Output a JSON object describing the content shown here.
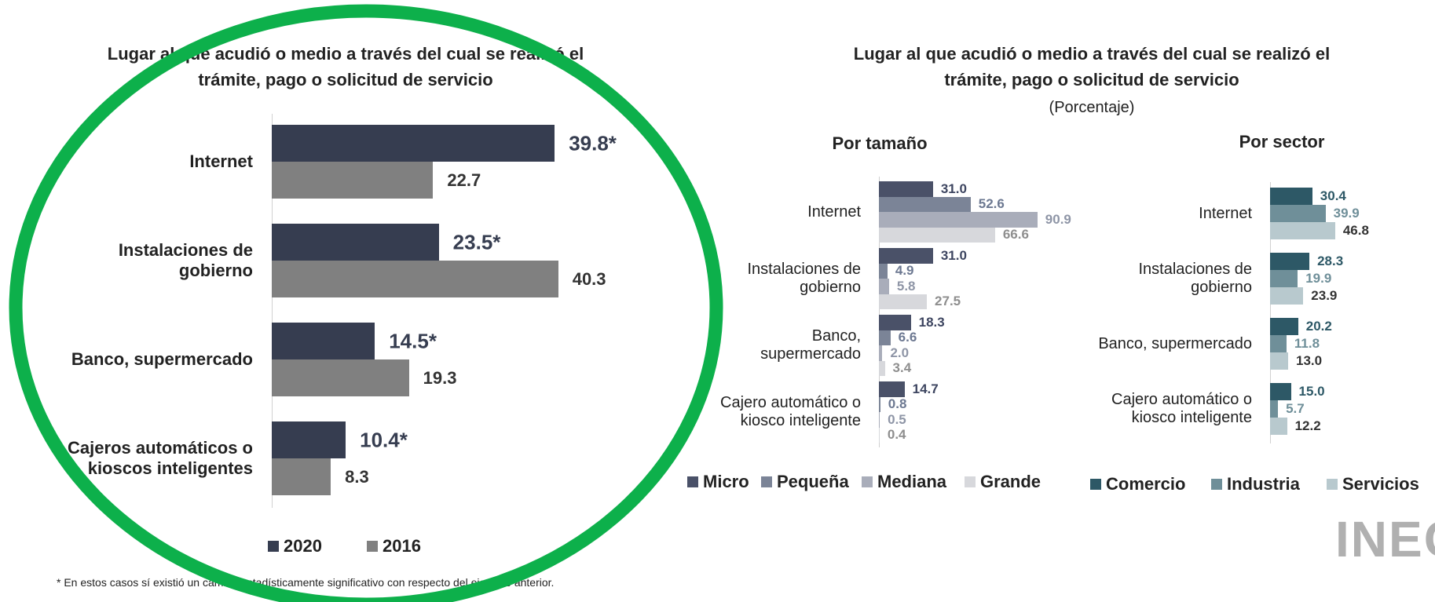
{
  "chart_data": [
    {
      "type": "hbar",
      "title": "Lugar al que acudió o medio a través del cual se realizó el trámite, pago o solicitud de servicio",
      "categories": [
        "Internet",
        "Instalaciones de gobierno",
        "Banco, supermercado",
        "Cajeros automáticos o kioscos inteligentes"
      ],
      "series": [
        {
          "name": "2020",
          "color": "#363d50",
          "label_color": "#363d50",
          "values": [
            39.8,
            23.5,
            14.5,
            10.4
          ],
          "value_labels": [
            "39.8*",
            "23.5*",
            "14.5*",
            "10.4*"
          ]
        },
        {
          "name": "2016",
          "color": "#808080",
          "label_color": "#333333",
          "values": [
            22.7,
            40.3,
            19.3,
            8.3
          ],
          "value_labels": [
            "22.7",
            "40.3",
            "19.3",
            "8.3"
          ]
        }
      ],
      "footnote": "* En estos casos sí existió un cambio estadísticamente significativo con respecto del ejercicio anterior."
    },
    {
      "type": "hbar",
      "title": "Lugar al que acudió o medio a través del cual se realizó el trámite, pago o solicitud de servicio",
      "subtitle": "(Porcentaje)",
      "panel_title": "Por tamaño",
      "categories": [
        "Internet",
        "Instalaciones de gobierno",
        "Banco, supermercado",
        "Cajero automático o kiosco inteligente"
      ],
      "series": [
        {
          "name": "Micro",
          "color": "#4a5168",
          "label_color": "#3d4560",
          "values": [
            31.0,
            31.0,
            18.3,
            14.7
          ],
          "value_labels": [
            "31.0",
            "31.0",
            "18.3",
            "14.7"
          ]
        },
        {
          "name": "Pequeña",
          "color": "#7b8497",
          "label_color": "#6c7891",
          "values": [
            52.6,
            4.9,
            6.6,
            0.8
          ],
          "value_labels": [
            "52.6",
            "4.9",
            "6.6",
            "0.8"
          ]
        },
        {
          "name": "Mediana",
          "color": "#a9adba",
          "label_color": "#8e95a6",
          "values": [
            90.9,
            5.8,
            2.0,
            0.5
          ],
          "value_labels": [
            "90.9",
            "5.8",
            "2.0",
            "0.5"
          ]
        },
        {
          "name": "Grande",
          "color": "#d7d8dc",
          "label_color": "#8e8e8e",
          "values": [
            66.6,
            27.5,
            3.4,
            0.4
          ],
          "value_labels": [
            "66.6",
            "27.5",
            "3.4",
            "0.4"
          ]
        }
      ]
    },
    {
      "type": "hbar",
      "panel_title": "Por sector",
      "categories": [
        "Internet",
        "Instalaciones de gobierno",
        "Banco, supermercado",
        "Cajero automático o kiosco inteligente"
      ],
      "series": [
        {
          "name": "Comercio",
          "color": "#2d5866",
          "label_color": "#2d5866",
          "values": [
            30.4,
            28.3,
            20.2,
            15.0
          ],
          "value_labels": [
            "30.4",
            "28.3",
            "20.2",
            "15.0"
          ]
        },
        {
          "name": "Industria",
          "color": "#6f8f99",
          "label_color": "#6f8f99",
          "values": [
            39.9,
            19.9,
            11.8,
            5.7
          ],
          "value_labels": [
            "39.9",
            "19.9",
            "11.8",
            "5.7"
          ]
        },
        {
          "name": "Servicios",
          "color": "#b8c9ce",
          "label_color": "#333333",
          "values": [
            46.8,
            23.9,
            13.0,
            12.2
          ],
          "value_labels": [
            "46.8",
            "23.9",
            "13.0",
            "12.2"
          ]
        }
      ],
      "logo": "INEGI"
    }
  ]
}
